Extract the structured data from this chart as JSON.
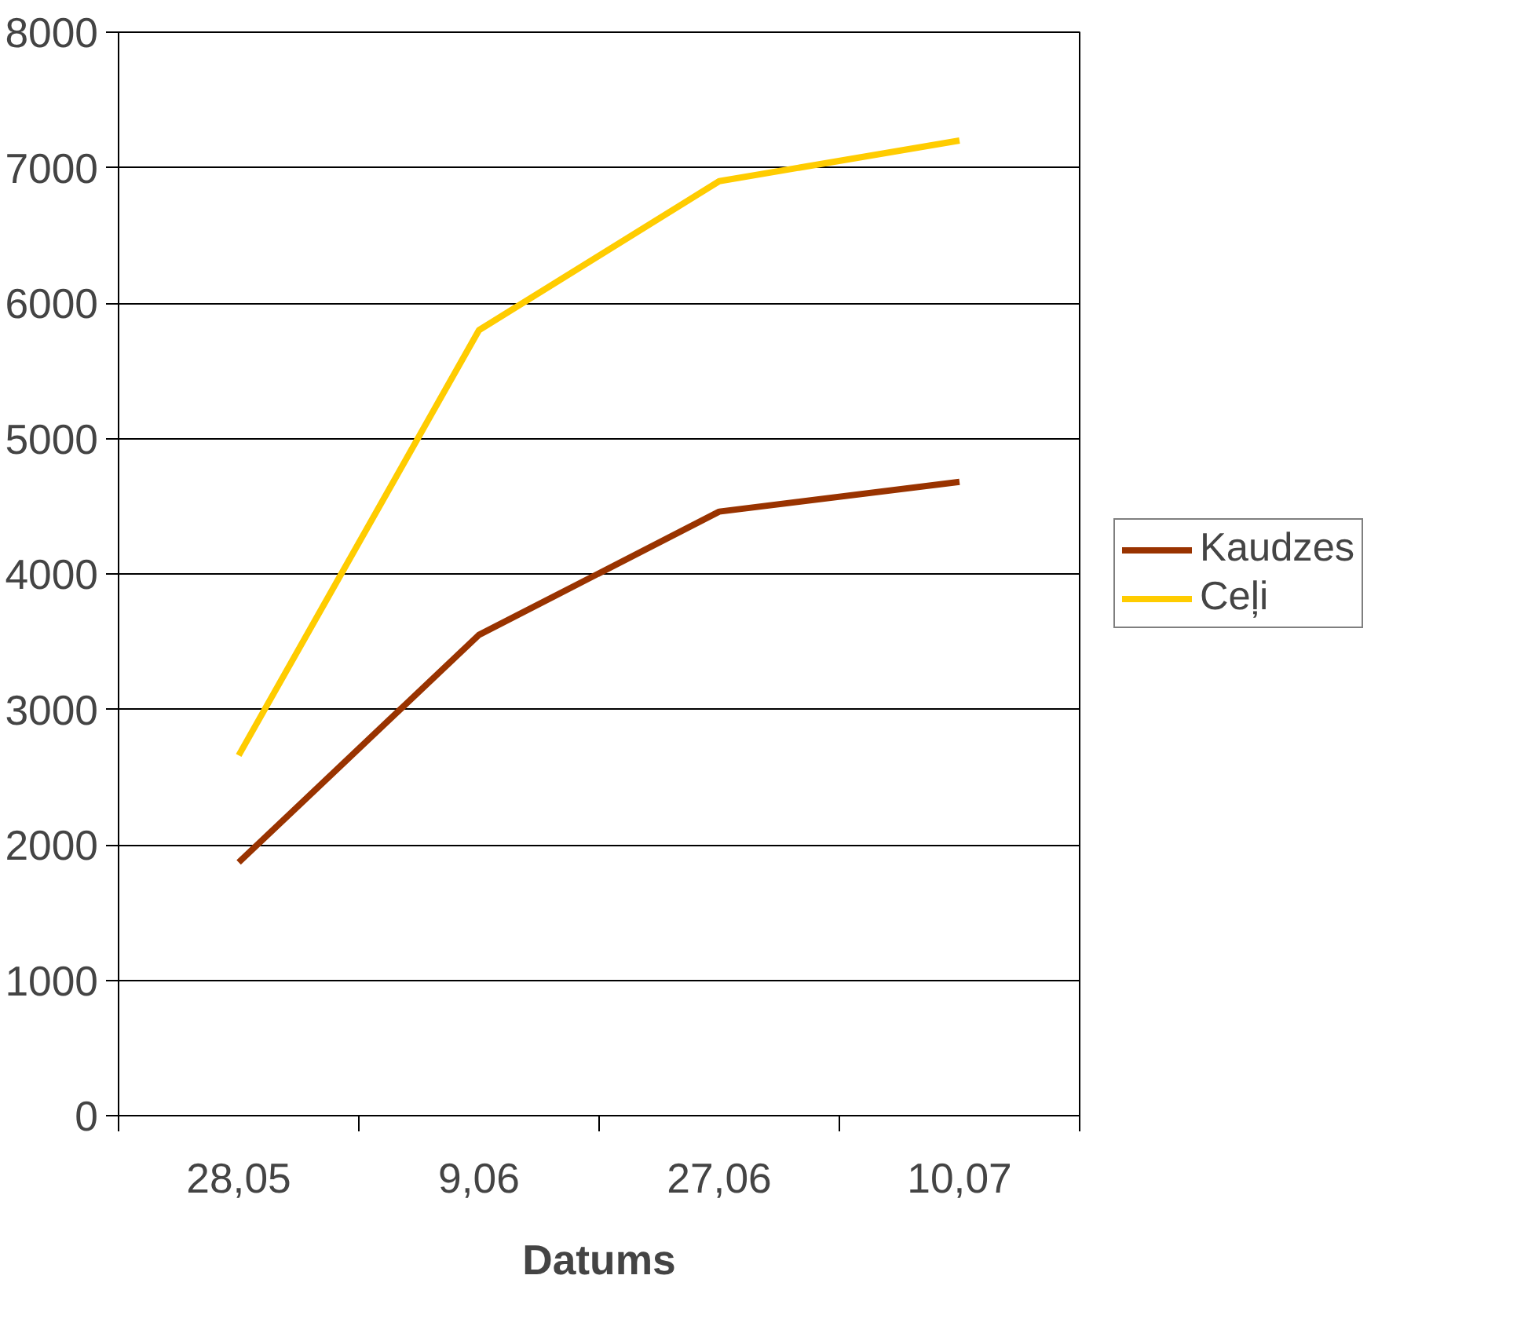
{
  "chart_data": {
    "type": "line",
    "xlabel": "Datums",
    "categories": [
      "28,05",
      "9,06",
      "27,06",
      "10,07"
    ],
    "series": [
      {
        "name": "Kaudzes",
        "color": "#993300",
        "values": [
          1870,
          3550,
          4460,
          4680
        ]
      },
      {
        "name": "Ceļi",
        "color": "#ffcc00",
        "values": [
          2660,
          5800,
          6900,
          7200
        ]
      }
    ],
    "ylim": [
      0,
      8000
    ],
    "yticks": [
      0,
      1000,
      2000,
      3000,
      4000,
      5000,
      6000,
      7000,
      8000
    ],
    "grid": "y",
    "legend": "right",
    "marker": "none",
    "line_style": "solid"
  }
}
